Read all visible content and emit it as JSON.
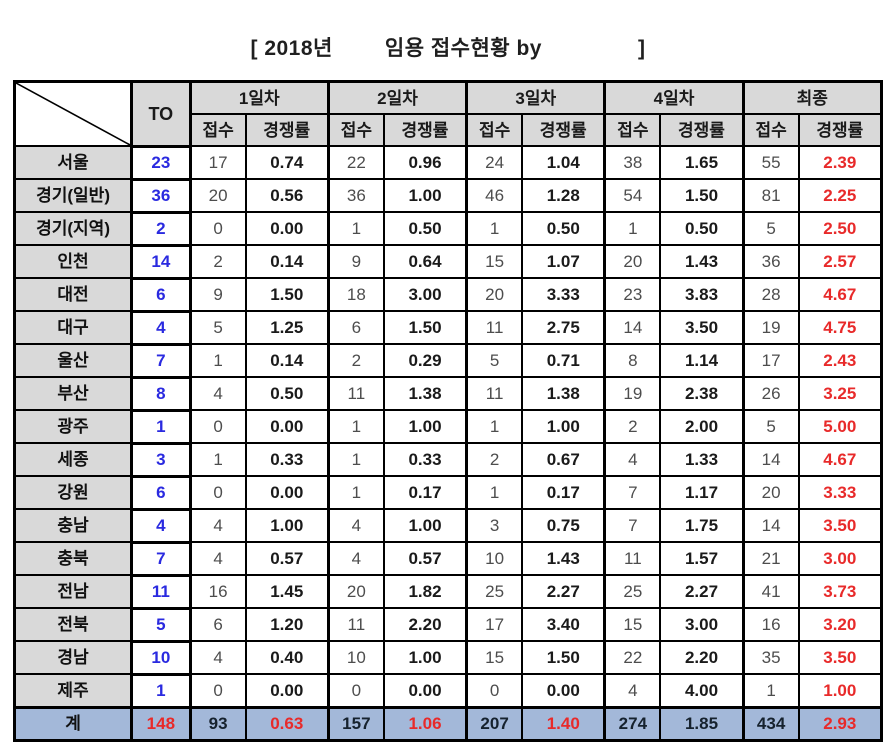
{
  "title": {
    "left": "[ 2018년",
    "middle": "임용 접수현황 by",
    "right": "]"
  },
  "colors": {
    "header_bg": "#d9d9d9",
    "region_bg": "#d9d9d9",
    "to_blue": "#2a2ae0",
    "apps_gray": "#4d4d4d",
    "ratio_dark": "#1a1a1a",
    "final_red": "#e82a2a",
    "total_bg": "#a3b8d9"
  },
  "table": {
    "to_label": "TO",
    "groups": [
      "1일차",
      "2일차",
      "3일차",
      "4일차",
      "최종"
    ],
    "sub_headers": [
      "접수",
      "경쟁률"
    ],
    "rows": [
      {
        "region": "서울",
        "to": "23",
        "cells": [
          "17",
          "0.74",
          "22",
          "0.96",
          "24",
          "1.04",
          "38",
          "1.65",
          "55",
          "2.39"
        ]
      },
      {
        "region": "경기(일반)",
        "to": "36",
        "cells": [
          "20",
          "0.56",
          "36",
          "1.00",
          "46",
          "1.28",
          "54",
          "1.50",
          "81",
          "2.25"
        ]
      },
      {
        "region": "경기(지역)",
        "to": "2",
        "cells": [
          "0",
          "0.00",
          "1",
          "0.50",
          "1",
          "0.50",
          "1",
          "0.50",
          "5",
          "2.50"
        ]
      },
      {
        "region": "인천",
        "to": "14",
        "cells": [
          "2",
          "0.14",
          "9",
          "0.64",
          "15",
          "1.07",
          "20",
          "1.43",
          "36",
          "2.57"
        ]
      },
      {
        "region": "대전",
        "to": "6",
        "cells": [
          "9",
          "1.50",
          "18",
          "3.00",
          "20",
          "3.33",
          "23",
          "3.83",
          "28",
          "4.67"
        ]
      },
      {
        "region": "대구",
        "to": "4",
        "cells": [
          "5",
          "1.25",
          "6",
          "1.50",
          "11",
          "2.75",
          "14",
          "3.50",
          "19",
          "4.75"
        ]
      },
      {
        "region": "울산",
        "to": "7",
        "cells": [
          "1",
          "0.14",
          "2",
          "0.29",
          "5",
          "0.71",
          "8",
          "1.14",
          "17",
          "2.43"
        ]
      },
      {
        "region": "부산",
        "to": "8",
        "cells": [
          "4",
          "0.50",
          "11",
          "1.38",
          "11",
          "1.38",
          "19",
          "2.38",
          "26",
          "3.25"
        ]
      },
      {
        "region": "광주",
        "to": "1",
        "cells": [
          "0",
          "0.00",
          "1",
          "1.00",
          "1",
          "1.00",
          "2",
          "2.00",
          "5",
          "5.00"
        ]
      },
      {
        "region": "세종",
        "to": "3",
        "cells": [
          "1",
          "0.33",
          "1",
          "0.33",
          "2",
          "0.67",
          "4",
          "1.33",
          "14",
          "4.67"
        ]
      },
      {
        "region": "강원",
        "to": "6",
        "cells": [
          "0",
          "0.00",
          "1",
          "0.17",
          "1",
          "0.17",
          "7",
          "1.17",
          "20",
          "3.33"
        ]
      },
      {
        "region": "충남",
        "to": "4",
        "cells": [
          "4",
          "1.00",
          "4",
          "1.00",
          "3",
          "0.75",
          "7",
          "1.75",
          "14",
          "3.50"
        ]
      },
      {
        "region": "충북",
        "to": "7",
        "cells": [
          "4",
          "0.57",
          "4",
          "0.57",
          "10",
          "1.43",
          "11",
          "1.57",
          "21",
          "3.00"
        ]
      },
      {
        "region": "전남",
        "to": "11",
        "cells": [
          "16",
          "1.45",
          "20",
          "1.82",
          "25",
          "2.27",
          "25",
          "2.27",
          "41",
          "3.73"
        ]
      },
      {
        "region": "전북",
        "to": "5",
        "cells": [
          "6",
          "1.20",
          "11",
          "2.20",
          "17",
          "3.40",
          "15",
          "3.00",
          "16",
          "3.20"
        ]
      },
      {
        "region": "경남",
        "to": "10",
        "cells": [
          "4",
          "0.40",
          "10",
          "1.00",
          "15",
          "1.50",
          "22",
          "2.20",
          "35",
          "3.50"
        ]
      },
      {
        "region": "제주",
        "to": "1",
        "cells": [
          "0",
          "0.00",
          "0",
          "0.00",
          "0",
          "0.00",
          "4",
          "4.00",
          "1",
          "1.00"
        ]
      }
    ],
    "total": {
      "region": "계",
      "to": "148",
      "cells": [
        {
          "v": "93",
          "c": "dark"
        },
        {
          "v": "0.63",
          "c": "red"
        },
        {
          "v": "157",
          "c": "dark"
        },
        {
          "v": "1.06",
          "c": "red"
        },
        {
          "v": "207",
          "c": "dark"
        },
        {
          "v": "1.40",
          "c": "red"
        },
        {
          "v": "274",
          "c": "dark"
        },
        {
          "v": "1.85",
          "c": "dark"
        },
        {
          "v": "434",
          "c": "dark"
        },
        {
          "v": "2.93",
          "c": "red"
        }
      ]
    }
  }
}
